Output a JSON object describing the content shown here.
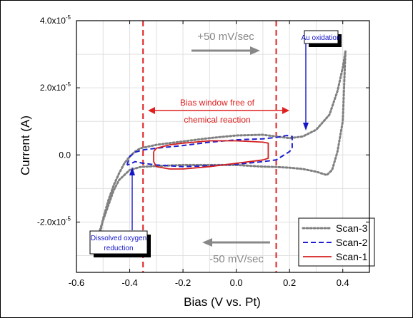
{
  "chart_data": {
    "type": "line",
    "title": "",
    "xlabel": "Bias (V vs. Pt)",
    "ylabel": "Current (A)",
    "xlim": [
      -0.6,
      0.5
    ],
    "ylim": [
      -3.5e-05,
      4e-05
    ],
    "x_ticks": [
      -0.6,
      -0.4,
      -0.2,
      0.0,
      0.2,
      0.4
    ],
    "x_tick_labels": [
      "-0.6",
      "-0.4",
      "-0.2",
      "0.0",
      "0.2",
      "0.4"
    ],
    "y_ticks": [
      4e-05,
      2e-05,
      0.0,
      -2e-05
    ],
    "y_tick_labels": [
      {
        "mant": "4.0x10",
        "exp": "-5"
      },
      {
        "mant": "2.0x10",
        "exp": "-5"
      },
      {
        "mant": "0.0",
        "exp": ""
      },
      {
        "mant": "-2.0x10",
        "exp": "-5"
      }
    ],
    "grid": true,
    "legend_position": "bottom-right",
    "series": [
      {
        "name": "Scan-3",
        "color": "#808080",
        "style": "dotted",
        "x": [
          -0.51,
          -0.5,
          -0.48,
          -0.46,
          -0.44,
          -0.42,
          -0.4,
          -0.38,
          -0.36,
          -0.3,
          -0.2,
          -0.1,
          0.0,
          0.1,
          0.15,
          0.2,
          0.25,
          0.3,
          0.35,
          0.38,
          0.4,
          0.41,
          0.4,
          0.38,
          0.36,
          0.34,
          0.3,
          0.25,
          0.2,
          0.15,
          0.1,
          0.0,
          -0.1,
          -0.2,
          -0.3,
          -0.36,
          -0.4,
          -0.44,
          -0.46,
          -0.48,
          -0.5,
          -0.51,
          -0.52
        ],
        "y": [
          -2.3e-05,
          -1.9e-05,
          -1.35e-05,
          -9e-06,
          -5.5e-06,
          -2.5e-06,
          -5e-07,
          1e-06,
          2e-06,
          3e-06,
          4e-06,
          5e-06,
          5.8e-06,
          6e-06,
          5.5e-06,
          5e-06,
          5.5e-06,
          7.5e-06,
          1.2e-05,
          1.9e-05,
          2.6e-05,
          3.1e-05,
          1e-05,
          1e-06,
          -4.5e-06,
          -6e-06,
          -5e-06,
          -4.2e-06,
          -3.8e-06,
          -3.6e-06,
          -3.5e-06,
          -3e-06,
          -3e-06,
          -3e-06,
          -3.3e-06,
          -3.6e-06,
          -4.5e-06,
          -7.5e-06,
          -1.05e-05,
          -1.5e-05,
          -1.95e-05,
          -2.2e-05,
          -2.45e-05
        ]
      },
      {
        "name": "Scan-2",
        "color": "#1f1fcf",
        "style": "dashed",
        "x": [
          -0.41,
          -0.4,
          -0.38,
          -0.35,
          -0.3,
          -0.2,
          -0.1,
          0.0,
          0.1,
          0.15,
          0.19,
          0.21,
          0.21,
          0.2,
          0.15,
          0.1,
          0.0,
          -0.1,
          -0.2,
          -0.3,
          -0.35,
          -0.38,
          -0.4,
          -0.41
        ],
        "y": [
          -3e-06,
          -5e-07,
          8e-07,
          1.5e-06,
          2e-06,
          2.8e-06,
          3.8e-06,
          4.5e-06,
          4.8e-06,
          5.2e-06,
          5.8e-06,
          5.5e-06,
          2e-06,
          1e-06,
          -1.5e-06,
          -2e-06,
          -2.8e-06,
          -3.2e-06,
          -3.5e-06,
          -3e-06,
          -2.5e-06,
          -2e-06,
          -2.8e-06,
          -3e-06
        ]
      },
      {
        "name": "Scan-1",
        "color": "#d42020",
        "style": "solid",
        "x": [
          -0.31,
          -0.3,
          -0.25,
          -0.2,
          -0.1,
          0.0,
          0.05,
          0.1,
          0.12,
          0.12,
          0.1,
          0.05,
          0.0,
          -0.1,
          -0.2,
          -0.25,
          -0.3,
          -0.31,
          -0.31
        ],
        "y": [
          1e-06,
          2e-06,
          3e-06,
          3.5e-06,
          4.2e-06,
          4.2e-06,
          4e-06,
          3.8e-06,
          3.5e-06,
          -1e-06,
          -1.5e-06,
          -2e-06,
          -2.5e-06,
          -3.5e-06,
          -4.2e-06,
          -4.2e-06,
          -3.5e-06,
          -2e-06,
          1e-06
        ]
      }
    ],
    "bias_window_lines": [
      -0.35,
      0.15
    ],
    "annotations": {
      "top_scan_rate": "+50 mV/sec",
      "bottom_scan_rate": "-50 mV/sec",
      "bias_window_line1": "Bias window free of",
      "bias_window_line2": "chemical reaction",
      "au_oxidation": "Au oxidation",
      "dissolved_oxygen_line1": "Dissolved oxygen",
      "dissolved_oxygen_line2": "reduction"
    }
  }
}
